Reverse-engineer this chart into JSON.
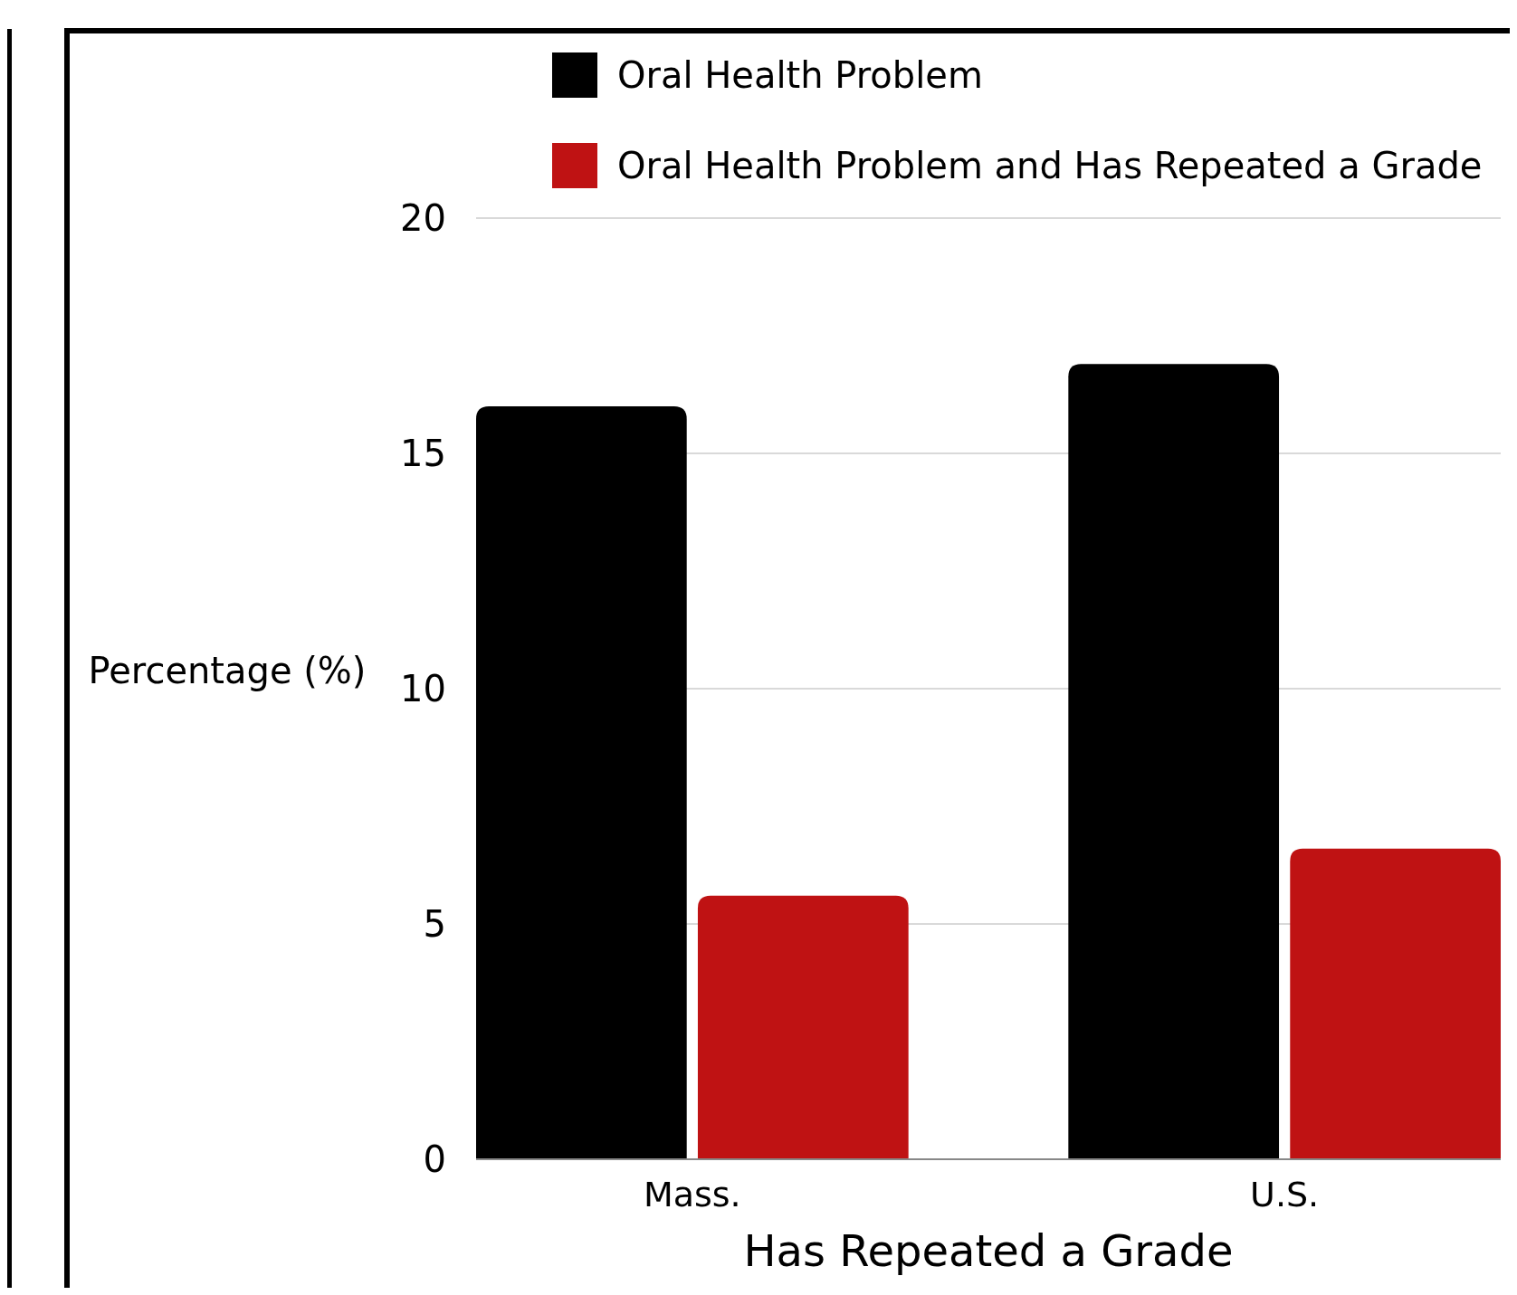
{
  "chart_data": {
    "type": "bar",
    "xlabel": "Has Repeated a Grade",
    "ylabel": "Percentage (%)",
    "categories": [
      "Mass.",
      "U.S."
    ],
    "series": [
      {
        "name": "Oral Health Problem",
        "color": "#000000",
        "values": [
          16,
          16.9
        ]
      },
      {
        "name": "Oral Health Problem and Has Repeated a Grade",
        "color": "#bf1213",
        "values": [
          5.6,
          6.6
        ]
      }
    ],
    "ylim": [
      0,
      20
    ],
    "yticks": [
      0,
      5,
      10,
      15,
      20
    ],
    "grid": "y",
    "legend": "top"
  }
}
